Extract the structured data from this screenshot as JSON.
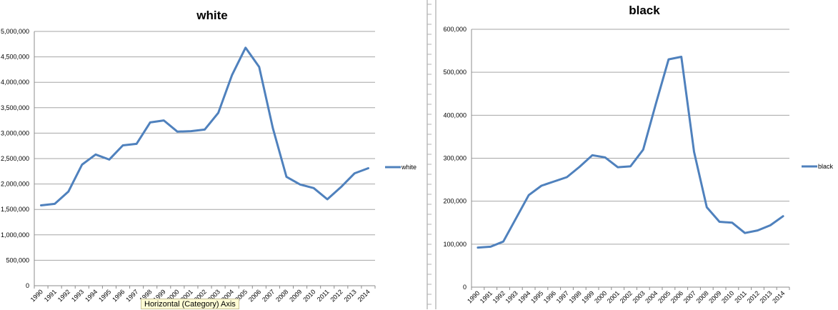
{
  "tooltip": {
    "text": "Horizontal (Category) Axis"
  },
  "chart_data": [
    {
      "type": "line",
      "title": "white",
      "xlabel": "",
      "ylabel": "",
      "ylim": [
        0,
        5000000
      ],
      "y_ticks": [
        "0",
        "500,000",
        "1,000,000",
        "1,500,000",
        "2,000,000",
        "2,500,000",
        "3,000,000",
        "3,500,000",
        "4,000,000",
        "4,500,000",
        "5,000,000"
      ],
      "categories": [
        "1990",
        "1991",
        "1992",
        "1993",
        "1994",
        "1995",
        "1996",
        "1997",
        "1998",
        "1999",
        "2000",
        "2001",
        "2002",
        "2003",
        "2004",
        "2005",
        "2006",
        "2007",
        "2008",
        "2009",
        "2010",
        "2011",
        "2012",
        "2013",
        "2014"
      ],
      "series": [
        {
          "name": "white",
          "color": "#4f81bd",
          "values": [
            1580000,
            1610000,
            1850000,
            2380000,
            2580000,
            2480000,
            2760000,
            2790000,
            3210000,
            3250000,
            3030000,
            3040000,
            3070000,
            3400000,
            4140000,
            4680000,
            4300000,
            3100000,
            2140000,
            1990000,
            1920000,
            1700000,
            1940000,
            2210000,
            2310000
          ]
        }
      ],
      "legend": "right",
      "grid": true,
      "tick_label_rotation": -45
    },
    {
      "type": "line",
      "title": "black",
      "xlabel": "",
      "ylabel": "",
      "ylim": [
        0,
        600000
      ],
      "y_ticks": [
        "0",
        "100,000",
        "200,000",
        "300,000",
        "400,000",
        "500,000",
        "600,000"
      ],
      "categories": [
        "1990",
        "1991",
        "1992",
        "1993",
        "1994",
        "1995",
        "1996",
        "1997",
        "1998",
        "1999",
        "2000",
        "2001",
        "2002",
        "2003",
        "2004",
        "2005",
        "2006",
        "2007",
        "2008",
        "2009",
        "2010",
        "2011",
        "2012",
        "2013",
        "2014"
      ],
      "series": [
        {
          "name": "black",
          "color": "#4f81bd",
          "values": [
            92000,
            94000,
            106000,
            160000,
            214000,
            236000,
            246000,
            256000,
            280000,
            307000,
            302000,
            279000,
            281000,
            320000,
            427000,
            530000,
            536000,
            315000,
            186000,
            152000,
            150000,
            126000,
            132000,
            144000,
            165000
          ]
        }
      ],
      "legend": "right",
      "grid": true,
      "tick_label_rotation": -45
    }
  ]
}
